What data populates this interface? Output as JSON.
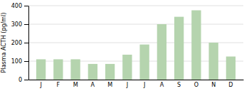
{
  "chart_data": {
    "type": "bar",
    "categories": [
      "J",
      "F",
      "M",
      "A",
      "M",
      "J",
      "J",
      "A",
      "S",
      "O",
      "N",
      "D"
    ],
    "values": [
      110,
      110,
      110,
      85,
      85,
      135,
      190,
      300,
      340,
      375,
      200,
      125
    ],
    "color": "#b5d4ae",
    "ylabel": "Plasma ACTH (pg/ml)",
    "ylim": [
      0,
      400
    ],
    "yticks": [
      0,
      100,
      200,
      300,
      400
    ],
    "grid": true
  }
}
